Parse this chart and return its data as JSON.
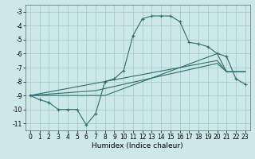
{
  "xlabel": "Humidex (Indice chaleur)",
  "background_color": "#cce8e8",
  "grid_color": "#aacccc",
  "line_color": "#2d6e6e",
  "x_data": [
    0,
    1,
    2,
    3,
    4,
    5,
    6,
    7,
    8,
    9,
    10,
    11,
    12,
    13,
    14,
    15,
    16,
    17,
    18,
    19,
    20,
    21,
    22,
    23
  ],
  "y_main": [
    -9.0,
    -9.3,
    -9.5,
    -10.0,
    -10.0,
    -10.0,
    -11.1,
    -10.3,
    -8.0,
    -7.8,
    -7.2,
    -4.7,
    -3.5,
    -3.3,
    -3.3,
    -3.3,
    -3.7,
    -5.2,
    -5.3,
    -5.5,
    -6.0,
    -6.2,
    -7.8,
    -8.2
  ],
  "y_line1": [
    -9.0,
    -9.0,
    -9.0,
    -9.0,
    -9.0,
    -9.0,
    -9.0,
    -9.0,
    -9.0,
    -8.75,
    -8.5,
    -8.25,
    -8.0,
    -7.75,
    -7.5,
    -7.25,
    -7.0,
    -6.75,
    -6.5,
    -6.25,
    -6.0,
    -7.3,
    -7.3,
    -7.3
  ],
  "y_line2": [
    -9.0,
    -8.95,
    -8.9,
    -8.85,
    -8.8,
    -8.75,
    -8.7,
    -8.65,
    -8.5,
    -8.35,
    -8.2,
    -8.05,
    -7.9,
    -7.75,
    -7.6,
    -7.45,
    -7.3,
    -7.15,
    -7.0,
    -6.85,
    -6.7,
    -7.3,
    -7.3,
    -7.3
  ],
  "y_line3": [
    -9.0,
    -8.87,
    -8.75,
    -8.62,
    -8.5,
    -8.37,
    -8.25,
    -8.12,
    -8.0,
    -7.87,
    -7.75,
    -7.62,
    -7.5,
    -7.37,
    -7.25,
    -7.12,
    -7.0,
    -6.87,
    -6.75,
    -6.62,
    -6.5,
    -7.3,
    -7.3,
    -7.3
  ],
  "xlim": [
    -0.5,
    23.5
  ],
  "ylim": [
    -11.5,
    -2.5
  ],
  "yticks": [
    -3,
    -4,
    -5,
    -6,
    -7,
    -8,
    -9,
    -10,
    -11
  ],
  "xticks": [
    0,
    1,
    2,
    3,
    4,
    5,
    6,
    7,
    8,
    9,
    10,
    11,
    12,
    13,
    14,
    15,
    16,
    17,
    18,
    19,
    20,
    21,
    22,
    23
  ],
  "marker": "+",
  "markersize": 3,
  "linewidth": 0.8,
  "figsize": [
    3.2,
    2.0
  ],
  "dpi": 100
}
